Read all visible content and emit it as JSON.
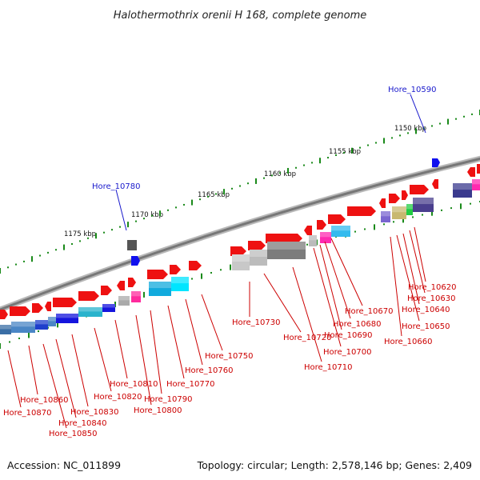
{
  "title": "Halothermothrix orenii H 168, complete genome",
  "footer": {
    "accession": "Accession: NC_011899",
    "summary": "Topology: circular; Length: 2,578,146 bp; Genes: 2,409"
  },
  "kbp_labels": [
    "1150 kbp",
    "1155 kbp",
    "1160 kbp",
    "1165 kbp",
    "1170 kbp",
    "1175 kbp"
  ],
  "highlighted_genes": [
    "Hore_10590",
    "Hore_10780"
  ],
  "gene_labels": [
    "Hore_10620",
    "Hore_10630",
    "Hore_10640",
    "Hore_10650",
    "Hore_10660",
    "Hore_10670",
    "Hore_10680",
    "Hore_10690",
    "Hore_10700",
    "Hore_10710",
    "Hore_10720",
    "Hore_10730",
    "Hore_10750",
    "Hore_10760",
    "Hore_10770",
    "Hore_10790",
    "Hore_10800",
    "Hore_10810",
    "Hore_10820",
    "Hore_10830",
    "Hore_10840",
    "Hore_10850",
    "Hore_10860",
    "Hore_10870"
  ],
  "colors": {
    "gene_arrow": "#ee1111",
    "gene_label": "#cc0000",
    "highlight_label": "#1a1acc",
    "highlight_marker": "#1010ee",
    "tick": "#1a8a1a",
    "backbone": "#8a8a8a"
  }
}
